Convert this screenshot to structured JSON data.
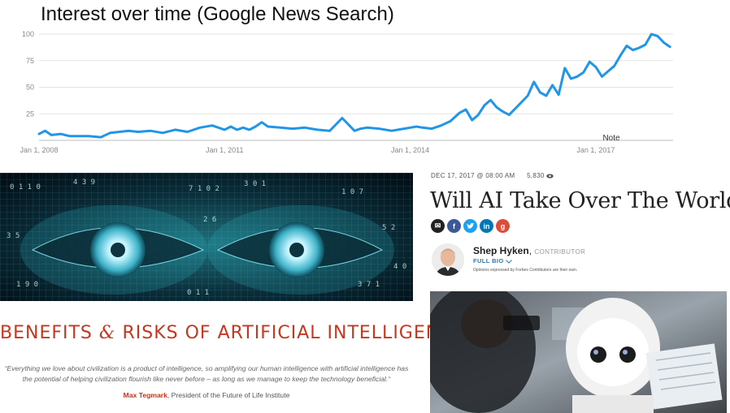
{
  "chart_data": {
    "type": "line",
    "title": "Interest over time (Google News Search)",
    "xlabel": "",
    "ylabel": "",
    "x_ticks": [
      "Jan 1, 2008",
      "Jan 1, 2011",
      "Jan 1, 2014",
      "Jan 1, 2017"
    ],
    "y_ticks": [
      25,
      50,
      75,
      100
    ],
    "ylim": [
      0,
      100
    ],
    "x_range": [
      2008.0,
      2018.25
    ],
    "grid": true,
    "annotation": "Note",
    "color": "#2196e8",
    "series": [
      {
        "x": [
          2008.0,
          2008.1,
          2008.2,
          2008.35,
          2008.5,
          2008.65,
          2008.8,
          2009.0,
          2009.15,
          2009.3,
          2009.45,
          2009.6,
          2009.8,
          2010.0,
          2010.2,
          2010.4,
          2010.6,
          2010.8,
          2011.0,
          2011.1,
          2011.2,
          2011.3,
          2011.4,
          2011.5,
          2011.6,
          2011.7,
          2011.9,
          2012.1,
          2012.3,
          2012.5,
          2012.7,
          2012.9,
          2013.1,
          2013.2,
          2013.3,
          2013.5,
          2013.7,
          2013.9,
          2014.0,
          2014.1,
          2014.2,
          2014.35,
          2014.5,
          2014.65,
          2014.8,
          2014.9,
          2015.0,
          2015.1,
          2015.2,
          2015.3,
          2015.4,
          2015.5,
          2015.6,
          2015.7,
          2015.8,
          2015.9,
          2016.0,
          2016.1,
          2016.2,
          2016.3,
          2016.4,
          2016.5,
          2016.6,
          2016.7,
          2016.8,
          2016.9,
          2017.0,
          2017.1,
          2017.2,
          2017.3,
          2017.4,
          2017.5,
          2017.6,
          2017.7,
          2017.8,
          2017.9,
          2018.0,
          2018.1,
          2018.2
        ],
        "y": [
          6,
          9,
          5,
          6,
          4,
          4,
          4,
          3,
          7,
          8,
          9,
          8,
          9,
          7,
          10,
          8,
          12,
          14,
          10,
          13,
          10,
          12,
          10,
          13,
          17,
          13,
          12,
          11,
          12,
          10,
          9,
          21,
          9,
          11,
          12,
          11,
          9,
          11,
          12,
          13,
          12,
          11,
          14,
          18,
          26,
          29,
          19,
          24,
          33,
          38,
          31,
          27,
          24,
          30,
          36,
          42,
          55,
          45,
          42,
          52,
          43,
          68,
          58,
          60,
          64,
          74,
          69,
          60,
          65,
          70,
          80,
          89,
          85,
          87,
          90,
          100,
          98,
          92,
          88
        ]
      }
    ]
  },
  "left_article": {
    "title_prefix": "BENEFITS ",
    "title_amp": "&",
    "title_suffix": " RISKS OF ARTIFICIAL INTELLIGENCE",
    "quote": "“Everything we love about civilization is a product of intelligence, so amplifying our human intelligence with artificial intelligence has the potential of helping civilization flourish like never before – as long as we manage to keep the technology beneficial.“",
    "attribution_name": "Max Tegmark",
    "attribution_rest": ", President of the Future of Life Institute"
  },
  "right_article": {
    "date": "DEC 17, 2017 @ 08:00 AM",
    "views": "5,830",
    "headline": "Will AI Take Over The World?",
    "share_icons": [
      "email-icon",
      "facebook-icon",
      "twitter-icon",
      "linkedin-icon",
      "google-plus-icon"
    ],
    "author_name": "Shep Hyken",
    "author_role": "CONTRIBUTOR",
    "full_bio": "FULL BIO",
    "disclaimer": "Opinions expressed by Forbes Contributors are their own."
  }
}
